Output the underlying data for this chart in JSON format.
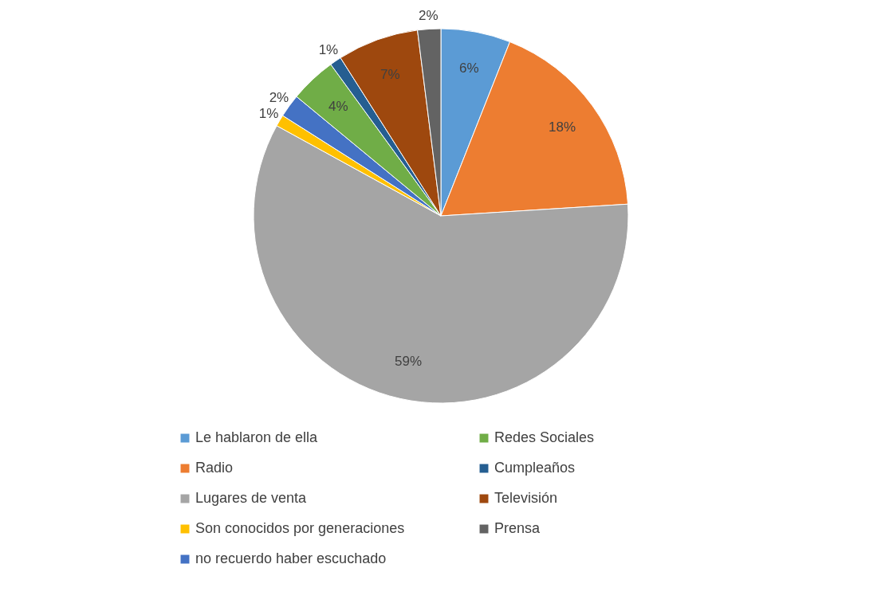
{
  "chart_data": {
    "type": "pie",
    "categories": [
      "Le hablaron de ella",
      "Radio",
      "Lugares de venta",
      "Son conocidos por generaciones",
      "no recuerdo haber escuchado",
      "Redes Sociales",
      "Cumpleaños",
      "Televisión",
      "Prensa"
    ],
    "values": [
      6,
      18,
      59,
      1,
      2,
      4,
      1,
      7,
      2
    ],
    "colors": [
      "#5b9bd5",
      "#ed7d31",
      "#a5a5a5",
      "#ffc000",
      "#4472c4",
      "#70ad47",
      "#255e91",
      "#9e480e",
      "#636363"
    ],
    "value_labels": [
      "6%",
      "18%",
      "59%",
      "1%",
      "2%",
      "4%",
      "1%",
      "7%",
      "2%"
    ],
    "legend": "bottom"
  }
}
